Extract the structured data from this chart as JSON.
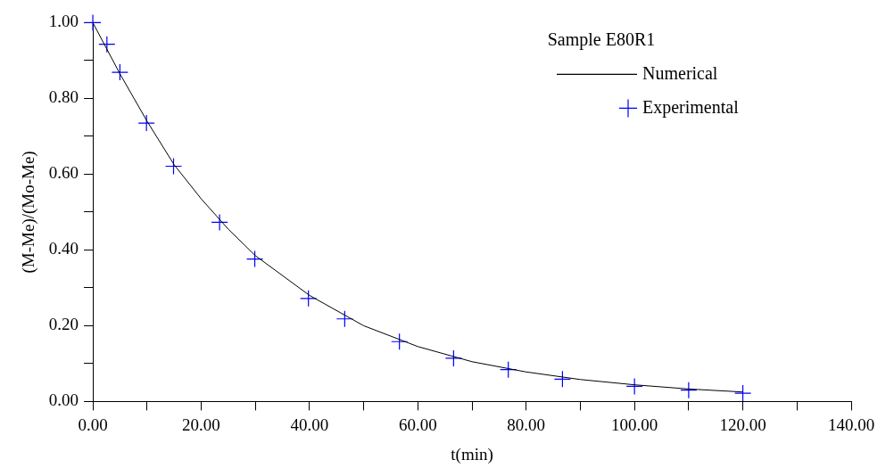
{
  "chart_data": {
    "type": "line",
    "xlabel": "t(min)",
    "ylabel": "(M-Me)/(Mo-Me)",
    "legend_title": "Sample E80R1",
    "legend": "top right",
    "xlim": [
      0,
      140
    ],
    "xticks": [
      {
        "value": 0,
        "label": "0.00"
      },
      {
        "value": 10,
        "label": null
      },
      {
        "value": 20,
        "label": "20.00"
      },
      {
        "value": 30,
        "label": null
      },
      {
        "value": 40,
        "label": "40.00"
      },
      {
        "value": 50,
        "label": null
      },
      {
        "value": 60,
        "label": "60.00"
      },
      {
        "value": 70,
        "label": null
      },
      {
        "value": 80,
        "label": "80.00"
      },
      {
        "value": 90,
        "label": null
      },
      {
        "value": 100,
        "label": "100.00"
      },
      {
        "value": 110,
        "label": null
      },
      {
        "value": 120,
        "label": "120.00"
      },
      {
        "value": 130,
        "label": null
      },
      {
        "value": 140,
        "label": "140.00"
      }
    ],
    "ylim": [
      0,
      1
    ],
    "yticks": [
      {
        "value": 0,
        "label": "0.00"
      },
      {
        "value": 0.1,
        "label": null
      },
      {
        "value": 0.2,
        "label": "0.20"
      },
      {
        "value": 0.3,
        "label": null
      },
      {
        "value": 0.4,
        "label": "0.40"
      },
      {
        "value": 0.5,
        "label": null
      },
      {
        "value": 0.6,
        "label": "0.60"
      },
      {
        "value": 0.7,
        "label": null
      },
      {
        "value": 0.8,
        "label": "0.80"
      },
      {
        "value": 0.9,
        "label": null
      },
      {
        "value": 1,
        "label": "1.00"
      }
    ],
    "series": [
      {
        "name": "Numerical",
        "color": "#000000",
        "marker": "none",
        "x": [
          0,
          5,
          10,
          15,
          20,
          25,
          30,
          40,
          50,
          60,
          70,
          80,
          90,
          100,
          110,
          120
        ],
        "values": [
          1.0,
          0.865,
          0.74,
          0.625,
          0.535,
          0.455,
          0.385,
          0.28,
          0.2,
          0.145,
          0.105,
          0.078,
          0.058,
          0.044,
          0.033,
          0.025
        ]
      },
      {
        "name": "Experimental",
        "type": "scatter",
        "color": "#0000ff",
        "marker": "cross",
        "x": [
          0,
          2.6,
          5,
          9.9,
          14.9,
          23.4,
          29.9,
          39.8,
          46.5,
          56.6,
          66.6,
          76.7,
          86.7,
          100,
          110,
          120
        ],
        "values": [
          1.0,
          0.943,
          0.869,
          0.735,
          0.621,
          0.473,
          0.376,
          0.272,
          0.218,
          0.158,
          0.114,
          0.084,
          0.059,
          0.04,
          0.03,
          0.022
        ]
      }
    ]
  }
}
